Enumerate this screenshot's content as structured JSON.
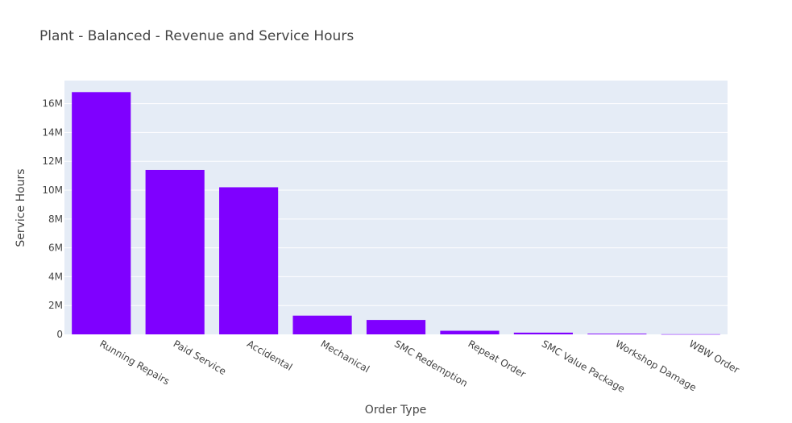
{
  "chart_data": {
    "type": "bar",
    "title": "Plant - Balanced - Revenue and Service Hours",
    "xlabel": "Order Type",
    "ylabel": "Service Hours",
    "ylim": [
      0,
      17600000
    ],
    "yticks": [
      0,
      2000000,
      4000000,
      6000000,
      8000000,
      10000000,
      12000000,
      14000000,
      16000000
    ],
    "ytick_labels": [
      "0",
      "2M",
      "4M",
      "6M",
      "8M",
      "10M",
      "12M",
      "14M",
      "16M"
    ],
    "categories": [
      "Running Repairs",
      "Paid Service",
      "Accidental",
      "Mechanical",
      "SMC Redemption",
      "Repeat Order",
      "SMC Value Package",
      "Workshop Damage",
      "WBW Order"
    ],
    "values": [
      16800000,
      11400000,
      10200000,
      1300000,
      1000000,
      250000,
      120000,
      50000,
      10000
    ],
    "bar_color": "#7f00ff",
    "plot_bg": "#e5ecf6",
    "grid": true,
    "legend": "none"
  }
}
